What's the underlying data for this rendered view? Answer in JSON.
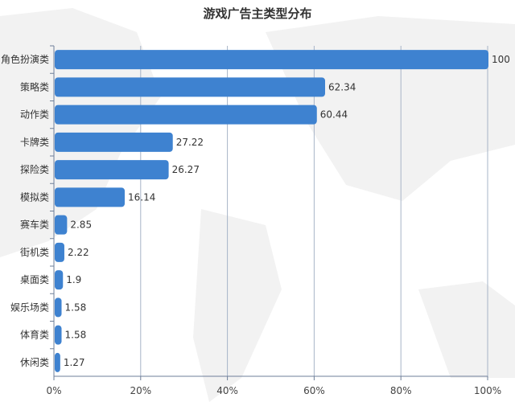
{
  "chart_data": {
    "type": "bar",
    "orientation": "horizontal",
    "title": "游戏广告主类型分布",
    "categories": [
      "角色扮演类",
      "策略类",
      "动作类",
      "卡牌类",
      "探险类",
      "模拟类",
      "赛车类",
      "街机类",
      "桌面类",
      "娱乐场类",
      "体育类",
      "休闲类"
    ],
    "values": [
      100,
      62.34,
      60.44,
      27.22,
      26.27,
      16.14,
      2.85,
      2.22,
      1.9,
      1.58,
      1.58,
      1.27
    ],
    "xlim": [
      0,
      100
    ],
    "xticks": [
      "0%",
      "20%",
      "40%",
      "60%",
      "80%",
      "100%"
    ],
    "grid": true,
    "bar_color": "#3e82d0",
    "background": "world-map-silhouette"
  }
}
